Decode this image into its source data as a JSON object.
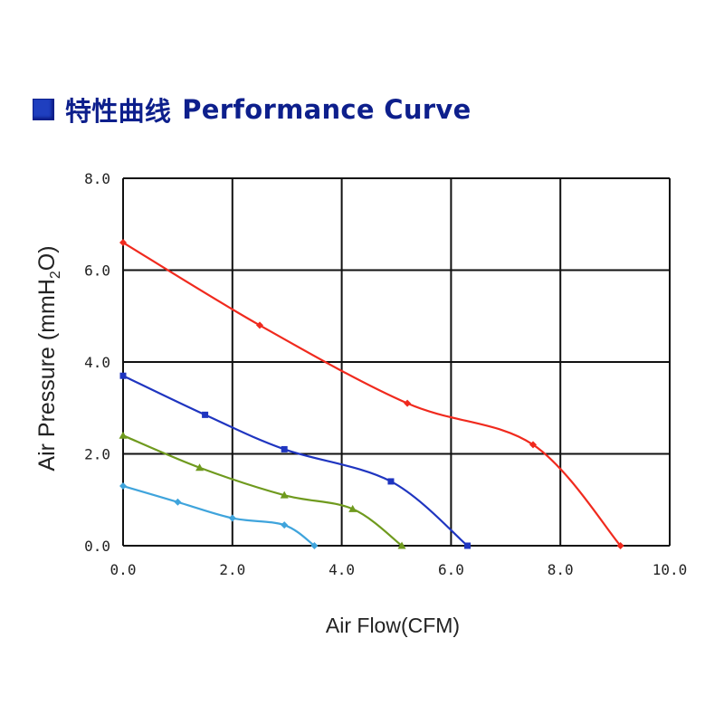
{
  "title": {
    "cn": "特性曲线",
    "en": "Performance  Curve",
    "icon": "blue-square-icon",
    "color": "#0d1f8c"
  },
  "chart_data": {
    "type": "line",
    "title": "特性曲线 Performance Curve",
    "xlabel": "Air Flow(CFM)",
    "ylabel": {
      "pre": "Air Pressure (mmH",
      "sub": "2",
      "post": "O)"
    },
    "xlim": [
      0,
      10
    ],
    "ylim": [
      0,
      8
    ],
    "xticks": [
      0,
      2,
      4,
      6,
      8,
      10
    ],
    "yticks": [
      0,
      2,
      4,
      6,
      8
    ],
    "xtick_labels": [
      "0.0",
      "2.0",
      "4.0",
      "6.0",
      "8.0",
      "10.0"
    ],
    "ytick_labels": [
      "0.0",
      "2.0",
      "4.0",
      "6.0",
      "8.0"
    ],
    "grid": true,
    "series": [
      {
        "name": "red",
        "color": "#f02a1e",
        "marker": "diamond",
        "x": [
          0,
          2.5,
          5.2,
          7.5,
          9.1
        ],
        "y": [
          6.6,
          4.8,
          3.1,
          2.2,
          0
        ]
      },
      {
        "name": "blue",
        "color": "#1f35c0",
        "marker": "square",
        "x": [
          0,
          1.5,
          2.95,
          4.9,
          6.3
        ],
        "y": [
          3.7,
          2.85,
          2.1,
          1.4,
          0
        ]
      },
      {
        "name": "green",
        "color": "#6f9a1e",
        "marker": "triangle",
        "x": [
          0,
          1.4,
          2.95,
          4.2,
          5.1
        ],
        "y": [
          2.4,
          1.7,
          1.1,
          0.8,
          0
        ]
      },
      {
        "name": "cyan",
        "color": "#3fa4dc",
        "marker": "diamond",
        "x": [
          0,
          1.0,
          2.0,
          2.95,
          3.5
        ],
        "y": [
          1.3,
          0.95,
          0.6,
          0.45,
          0
        ]
      }
    ]
  }
}
